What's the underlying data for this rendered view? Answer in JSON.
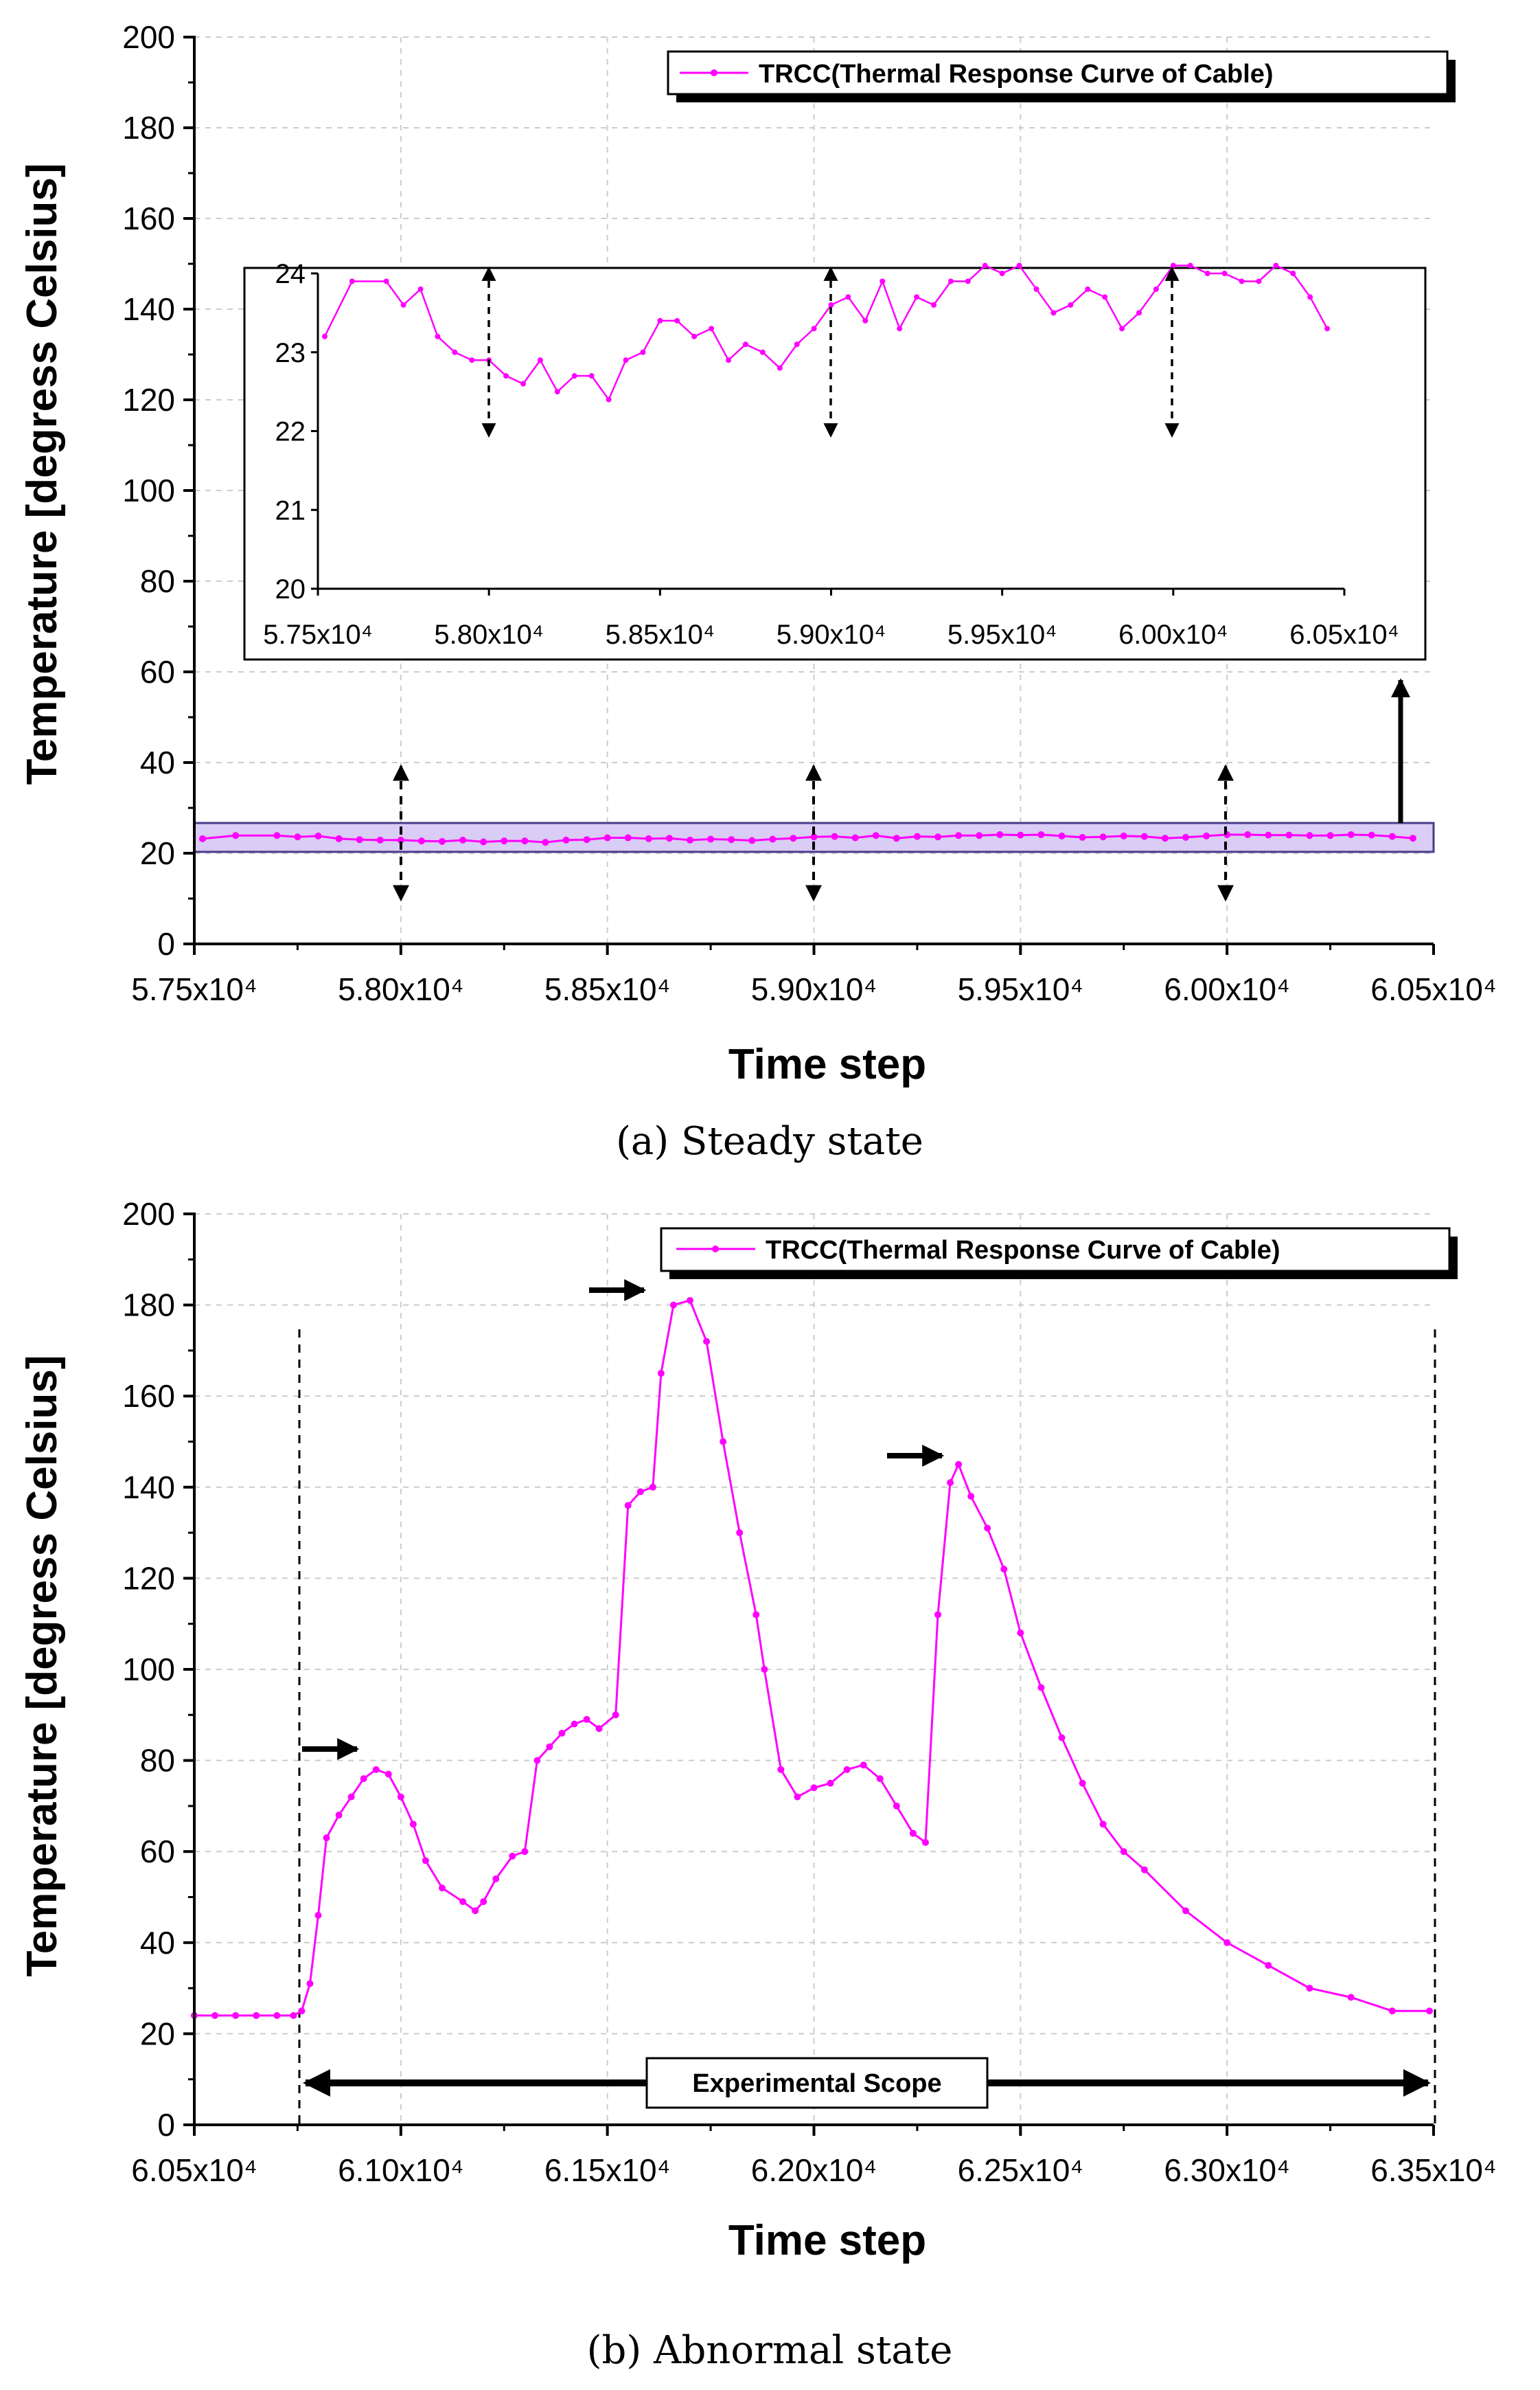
{
  "colors": {
    "series": "#ff00ff",
    "grid": "#cccccc",
    "axis": "#000000",
    "highlight_fill": "#d9ccf5",
    "highlight_stroke": "#4a3a8a"
  },
  "chart_data": [
    {
      "type": "line",
      "caption": "(a) Steady state",
      "xlabel": "Time step",
      "ylabel": "Temperature [degress Celsius]",
      "xlim": [
        57500,
        60500
      ],
      "ylim": [
        0,
        200
      ],
      "xticks": [
        "5.75x10⁴",
        "5.80x10⁴",
        "5.85x10⁴",
        "5.90x10⁴",
        "5.95x10⁴",
        "6.00x10⁴",
        "6.05x10⁴"
      ],
      "yticks": [
        "0",
        "20",
        "40",
        "60",
        "80",
        "100",
        "120",
        "140",
        "160",
        "180",
        "200"
      ],
      "grid": true,
      "legend": "top-right",
      "series": [
        {
          "name": "TRCC(Thermal Response Curve of Cable)",
          "x": [
            57520,
            57600,
            57700,
            57750,
            57800,
            57850,
            57900,
            57950,
            58000,
            58050,
            58100,
            58150,
            58200,
            58250,
            58300,
            58350,
            58400,
            58450,
            58500,
            58550,
            58600,
            58650,
            58700,
            58750,
            58800,
            58850,
            58900,
            58950,
            59000,
            59050,
            59100,
            59150,
            59200,
            59250,
            59300,
            59350,
            59400,
            59450,
            59500,
            59550,
            59600,
            59650,
            59700,
            59750,
            59800,
            59850,
            59900,
            59950,
            60000,
            60050,
            60100,
            60150,
            60200,
            60250,
            60300,
            60350,
            60400,
            60450
          ],
          "y": [
            23.2,
            23.9,
            23.9,
            23.6,
            23.8,
            23.2,
            23.0,
            22.9,
            22.9,
            22.7,
            22.6,
            22.9,
            22.5,
            22.7,
            22.7,
            22.4,
            22.9,
            23.0,
            23.4,
            23.4,
            23.2,
            23.3,
            22.9,
            23.1,
            23.0,
            22.8,
            23.1,
            23.3,
            23.6,
            23.7,
            23.4,
            23.9,
            23.3,
            23.7,
            23.6,
            23.9,
            23.9,
            24.1,
            24.0,
            24.1,
            23.8,
            23.5,
            23.6,
            23.8,
            23.7,
            23.3,
            23.5,
            23.8,
            24.1,
            24.1,
            24.0,
            24.0,
            23.9,
            23.9,
            24.1,
            24.0,
            23.7,
            23.3
          ]
        }
      ],
      "inset": {
        "xlim": [
          57500,
          60500
        ],
        "ylim": [
          20,
          24
        ],
        "xticks": [
          "5.75x10⁴",
          "5.80x10⁴",
          "5.85x10⁴",
          "5.90x10⁴",
          "5.95x10⁴",
          "6.00x10⁴",
          "6.05x10⁴"
        ],
        "yticks": [
          "20",
          "21",
          "22",
          "23",
          "24"
        ]
      }
    },
    {
      "type": "line",
      "caption": "(b) Abnormal state",
      "xlabel": "Time step",
      "ylabel": "Temperature [degress Celsius]",
      "xlim": [
        60500,
        63500
      ],
      "ylim": [
        0,
        200
      ],
      "xticks": [
        "6.05x10⁴",
        "6.10x10⁴",
        "6.15x10⁴",
        "6.20x10⁴",
        "6.25x10⁴",
        "6.30x10⁴",
        "6.35x10⁴"
      ],
      "yticks": [
        "0",
        "20",
        "40",
        "60",
        "80",
        "100",
        "120",
        "140",
        "160",
        "180",
        "200"
      ],
      "grid": true,
      "legend": "top-right",
      "annotation": "Experimental Scope",
      "series": [
        {
          "name": "TRCC(Thermal Response Curve of Cable)",
          "x": [
            60500,
            60550,
            60600,
            60650,
            60700,
            60740,
            60760,
            60780,
            60800,
            60820,
            60850,
            60880,
            60910,
            60940,
            60970,
            61000,
            61030,
            61060,
            61100,
            61150,
            61180,
            61200,
            61230,
            61270,
            61300,
            61330,
            61360,
            61390,
            61420,
            61450,
            61480,
            61520,
            61550,
            61580,
            61610,
            61630,
            61660,
            61700,
            61740,
            61780,
            61820,
            61860,
            61880,
            61920,
            61960,
            62000,
            62040,
            62080,
            62120,
            62160,
            62200,
            62240,
            62270,
            62300,
            62330,
            62350,
            62380,
            62420,
            62460,
            62500,
            62550,
            62600,
            62650,
            62700,
            62750,
            62800,
            62900,
            63000,
            63100,
            63200,
            63300,
            63400,
            63490
          ],
          "y": [
            24,
            24,
            24,
            24,
            24,
            24,
            25,
            31,
            46,
            63,
            68,
            72,
            76,
            78,
            77,
            72,
            66,
            58,
            52,
            49,
            47,
            49,
            54,
            59,
            60,
            80,
            83,
            86,
            88,
            89,
            87,
            90,
            136,
            139,
            140,
            165,
            180,
            181,
            172,
            150,
            130,
            112,
            100,
            78,
            72,
            74,
            75,
            78,
            79,
            76,
            70,
            64,
            62,
            112,
            141,
            145,
            138,
            131,
            122,
            108,
            96,
            85,
            75,
            66,
            60,
            56,
            47,
            40,
            35,
            30,
            28,
            25,
            25
          ]
        }
      ]
    }
  ]
}
